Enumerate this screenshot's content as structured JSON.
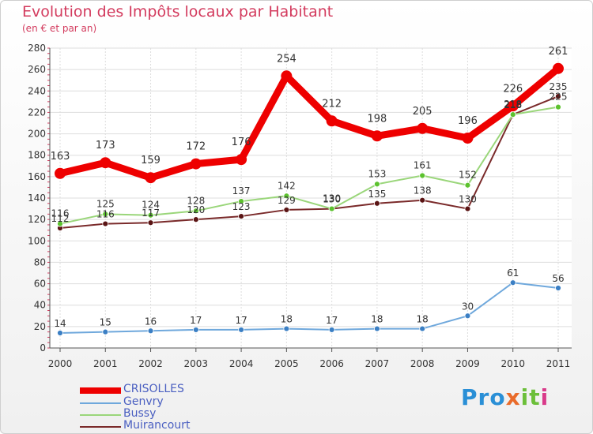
{
  "header": {
    "title": "Evolution des Impôts locaux par Habitant",
    "subtitle": "(en € et par an)"
  },
  "logo": {
    "text": "Proxiti",
    "part1": "Pro",
    "part2": "x",
    "part3": "it",
    "part4": "i"
  },
  "colors": {
    "crisolles": "#ee0000",
    "genvry": "#6fa8dc",
    "bussy": "#9ad67a",
    "muirancourt": "#7a2a2a",
    "genvry_marker": "#3b7fc4",
    "bussy_marker": "#5cc22e",
    "muirancourt_marker": "#5a1414",
    "grid": "#dddddd",
    "axis_text": "#333333"
  },
  "chart_data": {
    "type": "line",
    "title": "Evolution des Impôts locaux par Habitant",
    "subtitle": "(en € et par an)",
    "xlabel": "",
    "ylabel": "",
    "x": [
      "2000",
      "2001",
      "2002",
      "2003",
      "2004",
      "2005",
      "2006",
      "2007",
      "2008",
      "2009",
      "2010",
      "2011"
    ],
    "ylim": [
      0,
      280
    ],
    "yticks": [
      0,
      20,
      40,
      60,
      80,
      100,
      120,
      140,
      160,
      180,
      200,
      220,
      240,
      260,
      280
    ],
    "grid": true,
    "legend": "bottom-left",
    "series": [
      {
        "name": "CRISOLLES",
        "values": [
          163,
          173,
          159,
          172,
          176,
          254,
          212,
          198,
          205,
          196,
          226,
          261
        ]
      },
      {
        "name": "Genvry",
        "values": [
          14,
          15,
          16,
          17,
          17,
          18,
          17,
          18,
          18,
          30,
          61,
          56
        ]
      },
      {
        "name": "Bussy",
        "values": [
          116,
          125,
          124,
          128,
          137,
          142,
          130,
          153,
          161,
          152,
          218,
          225
        ]
      },
      {
        "name": "Muirancourt",
        "values": [
          112,
          116,
          117,
          120,
          123,
          129,
          130,
          135,
          138,
          130,
          218,
          235
        ]
      }
    ]
  }
}
